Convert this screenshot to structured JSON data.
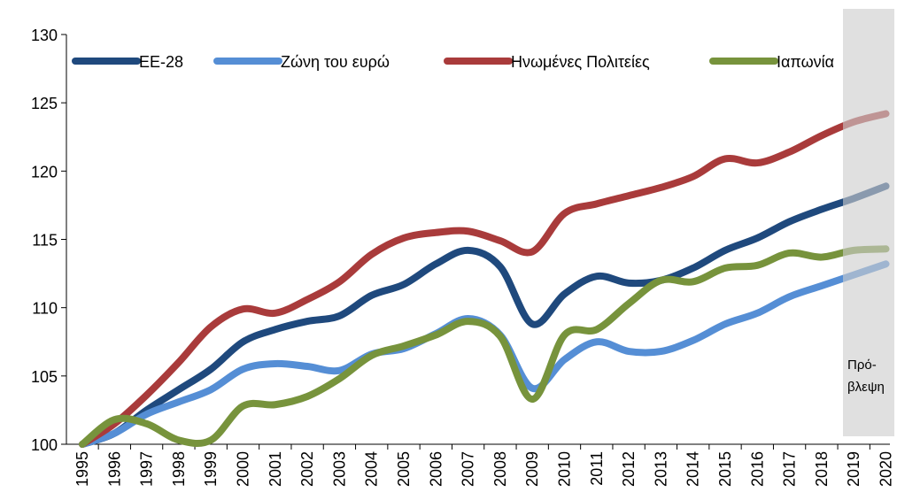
{
  "chart_data": {
    "type": "line",
    "categories": [
      "1995",
      "1996",
      "1997",
      "1998",
      "1999",
      "2000",
      "2001",
      "2002",
      "2003",
      "2004",
      "2005",
      "2006",
      "2007",
      "2008",
      "2009",
      "2010",
      "2011",
      "2012",
      "2013",
      "2014",
      "2015",
      "2016",
      "2017",
      "2018",
      "2019",
      "2020"
    ],
    "series": [
      {
        "name": "ΕΕ-28",
        "color": "#1f497d",
        "values": [
          100,
          100.8,
          102.5,
          104,
          105.5,
          107.5,
          108.4,
          109,
          109.4,
          110.9,
          111.7,
          113.2,
          114.2,
          113,
          108.8,
          111,
          112.3,
          111.8,
          112,
          112.9,
          114.2,
          115.1,
          116.3,
          117.2,
          118,
          118.9
        ]
      },
      {
        "name": "Ζώνη του ευρώ",
        "color": "#558ed5",
        "values": [
          100,
          100.8,
          102.2,
          103.1,
          104,
          105.5,
          105.9,
          105.7,
          105.4,
          106.6,
          107,
          108.1,
          109.2,
          108,
          104.1,
          106.2,
          107.5,
          106.8,
          106.8,
          107.6,
          108.8,
          109.6,
          110.8,
          111.6,
          112.4,
          113.2
        ]
      },
      {
        "name": "Ηνωμένες Πολιτείες",
        "color": "#a93b3b",
        "values": [
          100,
          101.5,
          103.6,
          106,
          108.6,
          109.9,
          109.6,
          110.6,
          111.9,
          113.9,
          115.1,
          115.5,
          115.6,
          114.9,
          114.1,
          116.9,
          117.6,
          118.2,
          118.8,
          119.6,
          120.9,
          120.6,
          121.4,
          122.6,
          123.6,
          124.2
        ]
      },
      {
        "name": "Ιαπωνία",
        "color": "#77933c",
        "values": [
          100,
          101.8,
          101.5,
          100.3,
          100.3,
          102.8,
          102.9,
          103.5,
          104.8,
          106.5,
          107.2,
          108,
          109,
          107.9,
          103.3,
          108,
          108.4,
          110.3,
          112,
          111.9,
          112.9,
          113.1,
          114,
          113.7,
          114.2,
          114.3
        ]
      }
    ],
    "ylim": [
      100,
      130
    ],
    "yticks": [
      100,
      105,
      110,
      115,
      120,
      125,
      130
    ],
    "annotation": [
      "Πρό-",
      "βλεψη"
    ],
    "grid": false
  }
}
